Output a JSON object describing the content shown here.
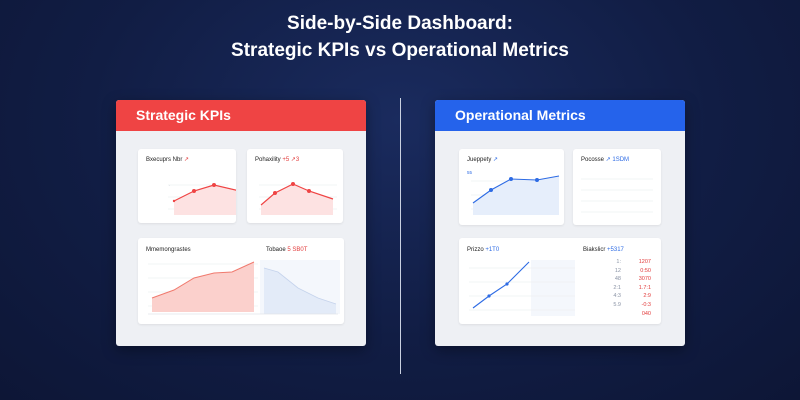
{
  "header": {
    "line1": "Side-by-Side Dashboard:",
    "line2": "Strategic KPIs vs Operational Metrics"
  },
  "colors": {
    "strategic": "#ef4444",
    "operational": "#2563eb"
  },
  "strategic": {
    "title": "Strategic KPIs",
    "cards": {
      "c1": {
        "label": "Bxecuprs Nbr",
        "suffix": "↗"
      },
      "c2": {
        "label": "Pohaxility",
        "suffix": "+5 ↗3"
      },
      "c3": {
        "label": "Mmemongrastes",
        "suffix": ""
      },
      "c4": {
        "label": "Tobaoe",
        "suffix": "5 SB0T"
      }
    }
  },
  "operational": {
    "title": "Operational Metrics",
    "cards": {
      "c1": {
        "label": "Jueppety",
        "suffix": "↗",
        "axis": "55"
      },
      "c2": {
        "label": "Pocosse",
        "suffix": "↗ 1SDM"
      },
      "c3": {
        "label": "Prizzo",
        "suffix": "+1T0"
      },
      "c4": {
        "label": "Biakslicr",
        "suffix": "+5317"
      }
    },
    "stats": [
      {
        "k": "1:",
        "v": "1207"
      },
      {
        "k": "12",
        "v": "0:50"
      },
      {
        "k": "48",
        "v": "3070"
      },
      {
        "k": "2:1",
        "v": "1.7:1"
      },
      {
        "k": "4:3",
        "v": "2:9"
      },
      {
        "k": "5.9",
        "v": "-0:3 040"
      }
    ]
  },
  "chart_data": [
    {
      "type": "line",
      "series": [
        {
          "values": [
            2,
            3.5,
            4.2,
            3
          ]
        }
      ]
    },
    {
      "type": "line",
      "series": [
        {
          "values": [
            1,
            2.5,
            4,
            2.5
          ]
        }
      ]
    },
    {
      "type": "area",
      "series": [
        {
          "values": [
            1,
            2,
            4,
            5.5,
            6.5,
            6.8,
            8.5
          ]
        }
      ]
    },
    {
      "type": "area",
      "series": [
        {
          "values": [
            6,
            5,
            3,
            2,
            1.5
          ]
        }
      ]
    },
    {
      "type": "line",
      "series": [
        {
          "values": [
            1.5,
            3,
            4.5,
            4.4,
            4.8,
            5
          ]
        }
      ]
    },
    {
      "type": "line",
      "series": [
        {
          "values": [
            1,
            2.5,
            4,
            6
          ]
        }
      ]
    }
  ]
}
